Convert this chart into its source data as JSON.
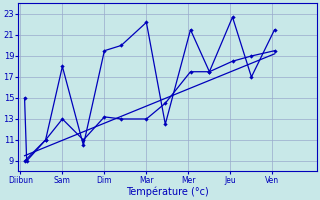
{
  "days": [
    "Diibun",
    "Sam",
    "Dim",
    "Mar",
    "Mer",
    "Jeu",
    "Ven"
  ],
  "bg_color": "#c8e8e8",
  "line_color": "#0000bb",
  "grid_color": "#99aacc",
  "xlabel": "Température (°c)",
  "ylim": [
    8,
    24
  ],
  "yticks": [
    9,
    11,
    13,
    15,
    17,
    19,
    21,
    23
  ],
  "xlim": [
    -0.05,
    7.05
  ],
  "n_days": 7,
  "zigzag1_x": [
    0.1,
    0.15,
    0.6,
    1.0,
    1.5,
    2.0,
    2.4,
    3.0,
    3.45,
    4.05,
    4.5,
    5.05,
    5.5,
    6.05
  ],
  "zigzag1_y": [
    15,
    9,
    11,
    18,
    10.5,
    19.5,
    20.0,
    22.2,
    12.5,
    21.5,
    17.5,
    22.7,
    17.0,
    21.5
  ],
  "zigzag2_x": [
    0.1,
    0.6,
    1.0,
    1.5,
    2.0,
    2.4,
    3.0,
    3.45,
    4.05,
    4.5,
    5.05,
    5.5,
    6.05
  ],
  "zigzag2_y": [
    9,
    11,
    13,
    11.0,
    13.2,
    13.0,
    13.0,
    14.5,
    17.5,
    17.5,
    18.5,
    19.0,
    19.5
  ],
  "trend_x": [
    0.1,
    6.05
  ],
  "trend_y": [
    9.5,
    19.2
  ]
}
